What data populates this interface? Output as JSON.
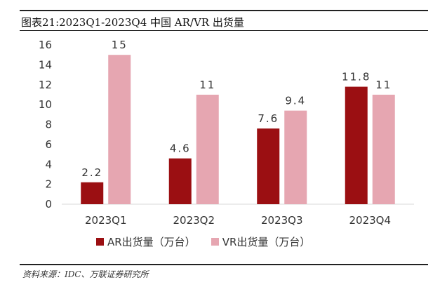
{
  "header": {
    "title": "图表21:2023Q1-2023Q4 中国 AR/VR 出货量"
  },
  "footer": {
    "source": "资料来源：IDC、万联证券研究所"
  },
  "colors": {
    "ar": "#9b0f12",
    "vr": "#e6a6b1",
    "axis": "#d9d9d9",
    "text": "#333333"
  },
  "chart_data": {
    "type": "bar",
    "categories": [
      "2023Q1",
      "2023Q2",
      "2023Q3",
      "2023Q4"
    ],
    "series": [
      {
        "name": "AR出货量（万台）",
        "values": [
          2.2,
          4.6,
          7.6,
          11.8
        ],
        "labels": [
          "2.2",
          "4.6",
          "7.6",
          "11.8"
        ]
      },
      {
        "name": "VR出货量（万台）",
        "values": [
          15,
          11,
          9.4,
          11
        ],
        "labels": [
          "15",
          "11",
          "9.4",
          "11"
        ]
      }
    ],
    "ylim": [
      0,
      16
    ],
    "yticks": [
      "0",
      "2",
      "4",
      "6",
      "8",
      "10",
      "12",
      "14",
      "16"
    ],
    "grid": false,
    "legend_position": "bottom"
  }
}
